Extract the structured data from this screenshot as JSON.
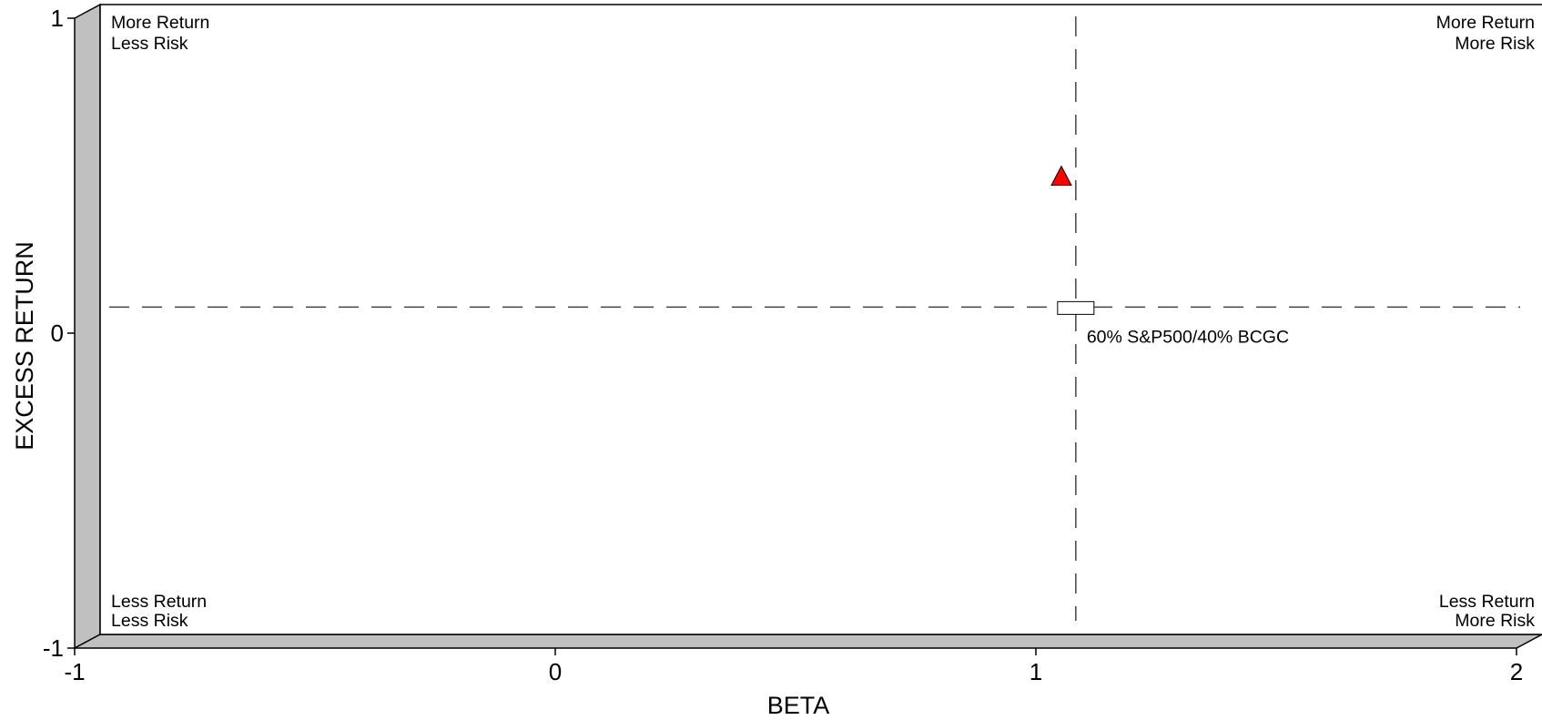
{
  "chart_data": {
    "type": "scatter",
    "title": "",
    "xlabel": "BETA",
    "ylabel": "EXCESS RETURN",
    "xlim": [
      -1,
      2
    ],
    "ylim": [
      -1,
      1
    ],
    "xticks": [
      "-1",
      "0",
      "1",
      "2"
    ],
    "yticks": [
      "-1",
      "0",
      "1"
    ],
    "grid": false,
    "quadrant_labels": {
      "top_left": [
        "More Return",
        "Less Risk"
      ],
      "top_right": [
        "More Return",
        "More Risk"
      ],
      "bottom_left": [
        "Less Return",
        "Less Risk"
      ],
      "bottom_right": [
        "Less Return",
        "More Risk"
      ]
    },
    "reference_lines": {
      "benchmark_beta": 1.03,
      "benchmark_excess_return": 0.05
    },
    "points": [
      {
        "label": "",
        "x": 1.0,
        "y": 0.47,
        "marker": "triangle",
        "color": "#ff0000"
      },
      {
        "label": "60% S&P500/40% BCGC",
        "x": 1.03,
        "y": 0.05,
        "marker": "rectangle",
        "color": "#ffffff"
      }
    ]
  }
}
